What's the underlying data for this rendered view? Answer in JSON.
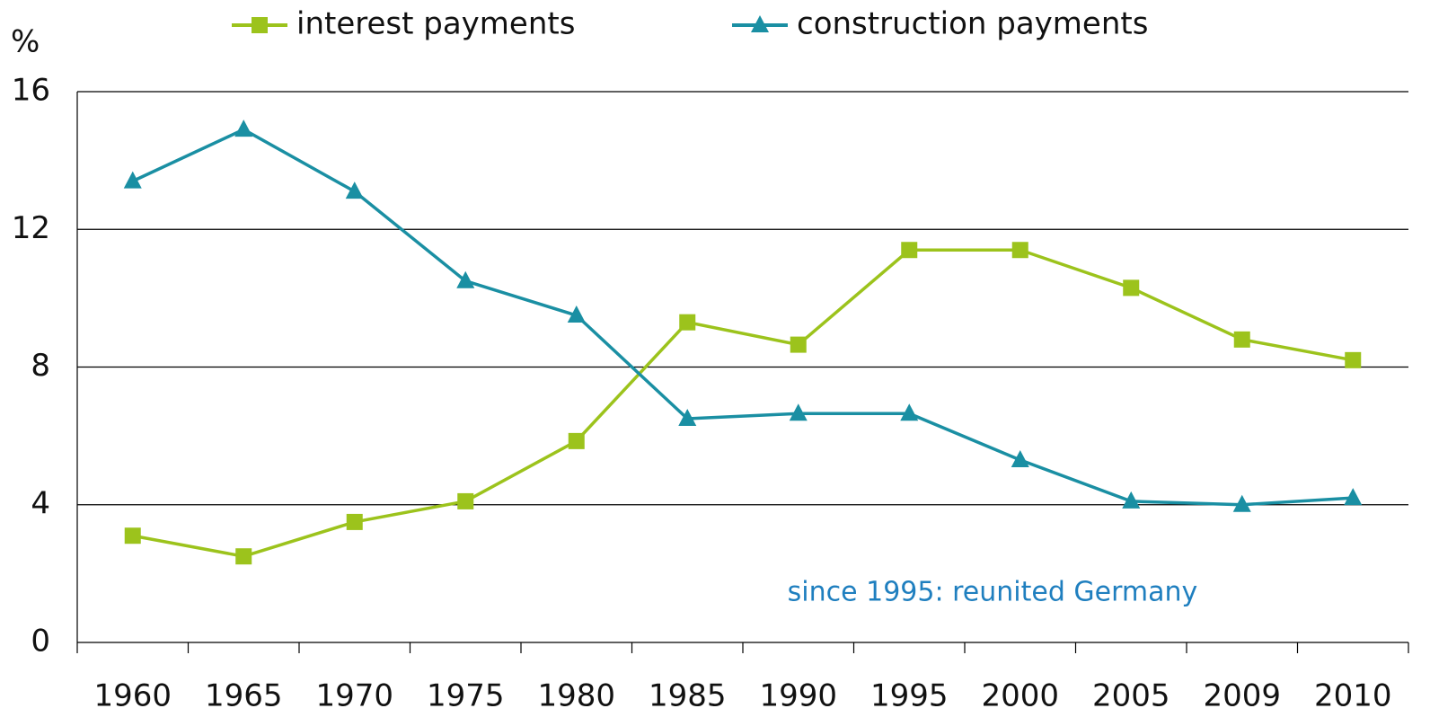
{
  "chart_data": {
    "type": "line",
    "y_label": "%",
    "annotation": "since 1995: reunited Germany",
    "categories": [
      "1960",
      "1965",
      "1970",
      "1975",
      "1980",
      "1985",
      "1990",
      "1995",
      "2000",
      "2005",
      "2009",
      "2010"
    ],
    "series": [
      {
        "name": "interest payments",
        "color": "#9cc31c",
        "marker": "square",
        "values": [
          3.1,
          2.5,
          3.5,
          4.1,
          5.85,
          9.3,
          8.65,
          11.4,
          11.4,
          10.3,
          8.8,
          8.2
        ]
      },
      {
        "name": "construction payments",
        "color": "#1a8fa3",
        "marker": "triangle",
        "values": [
          13.4,
          14.9,
          13.1,
          10.5,
          9.5,
          6.5,
          6.65,
          6.65,
          5.3,
          4.1,
          4.0,
          4.2
        ]
      }
    ],
    "ylim": [
      0,
      16
    ],
    "yticks": [
      0,
      4,
      8,
      12,
      16
    ],
    "grid": true,
    "legend": "top"
  }
}
